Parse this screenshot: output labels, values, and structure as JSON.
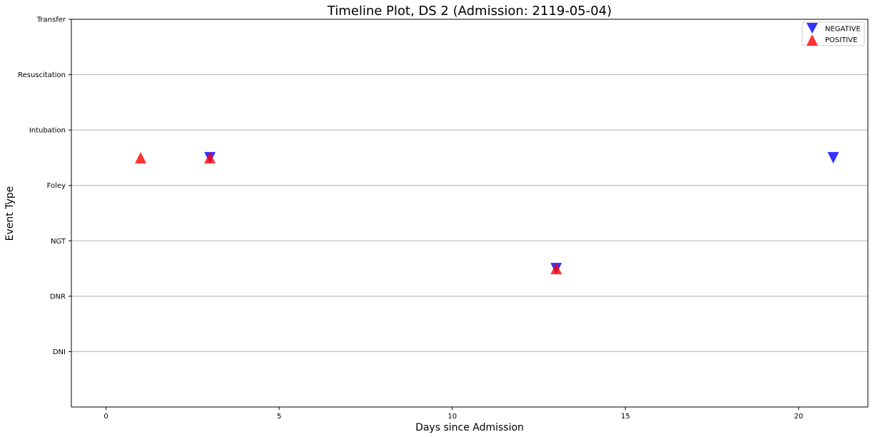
{
  "chart_data": {
    "type": "scatter",
    "title": "Timeline Plot, DS 2 (Admission: 2119-05-04)",
    "xlabel": "Days since Admission",
    "ylabel": "Event Type",
    "xlim": [
      -1,
      22
    ],
    "x_ticks": [
      0,
      5,
      10,
      15,
      20
    ],
    "y_categories": [
      "DNI",
      "DNR",
      "NGT",
      "Foley",
      "Intubation",
      "Resuscitation",
      "Transfer"
    ],
    "y_grid": true,
    "legend_position": "top-right",
    "series": [
      {
        "name": "NEGATIVE",
        "marker": "triangle-down",
        "color": "#0000ff",
        "points": [
          {
            "x": 3,
            "y": 3.5
          },
          {
            "x": 13,
            "y": 1.5
          },
          {
            "x": 21,
            "y": 3.5
          }
        ]
      },
      {
        "name": "POSITIVE",
        "marker": "triangle-up",
        "color": "#ff0000",
        "points": [
          {
            "x": 1,
            "y": 3.5
          },
          {
            "x": 3,
            "y": 3.5
          },
          {
            "x": 13,
            "y": 1.5
          }
        ]
      }
    ]
  }
}
